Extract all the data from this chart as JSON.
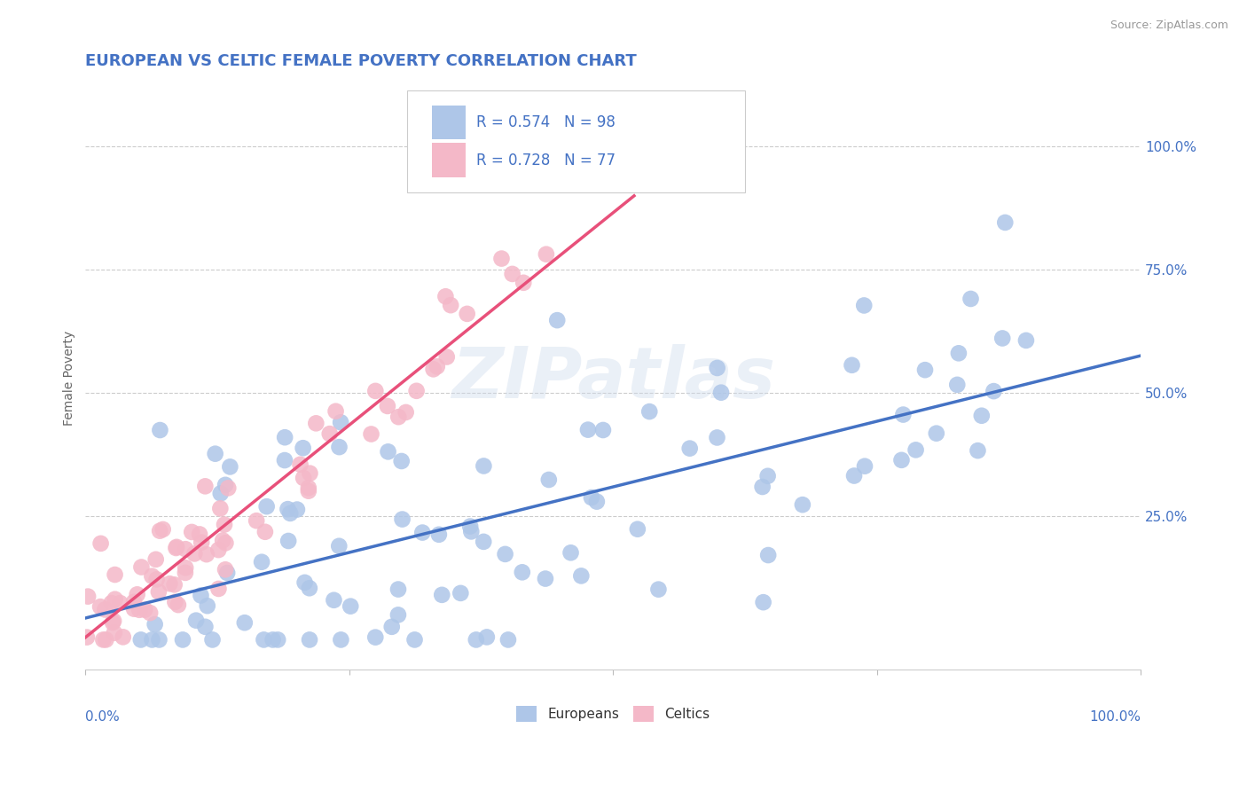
{
  "title": "EUROPEAN VS CELTIC FEMALE POVERTY CORRELATION CHART",
  "source": "Source: ZipAtlas.com",
  "ylabel": "Female Poverty",
  "r_european": 0.574,
  "n_european": 98,
  "r_celtic": 0.728,
  "n_celtic": 77,
  "european_color": "#aec6e8",
  "celtic_color": "#f4b8c8",
  "european_line_color": "#4472c4",
  "celtic_line_color": "#e8507a",
  "title_color": "#4472c4",
  "axis_label_color": "#4472c4",
  "legend_r_color": "#4472c4",
  "right_ytick_labels": [
    "25.0%",
    "50.0%",
    "75.0%",
    "100.0%"
  ],
  "right_ytick_values": [
    0.25,
    0.5,
    0.75,
    1.0
  ],
  "background_color": "#ffffff",
  "watermark": "ZIPatlas",
  "seed": 42
}
